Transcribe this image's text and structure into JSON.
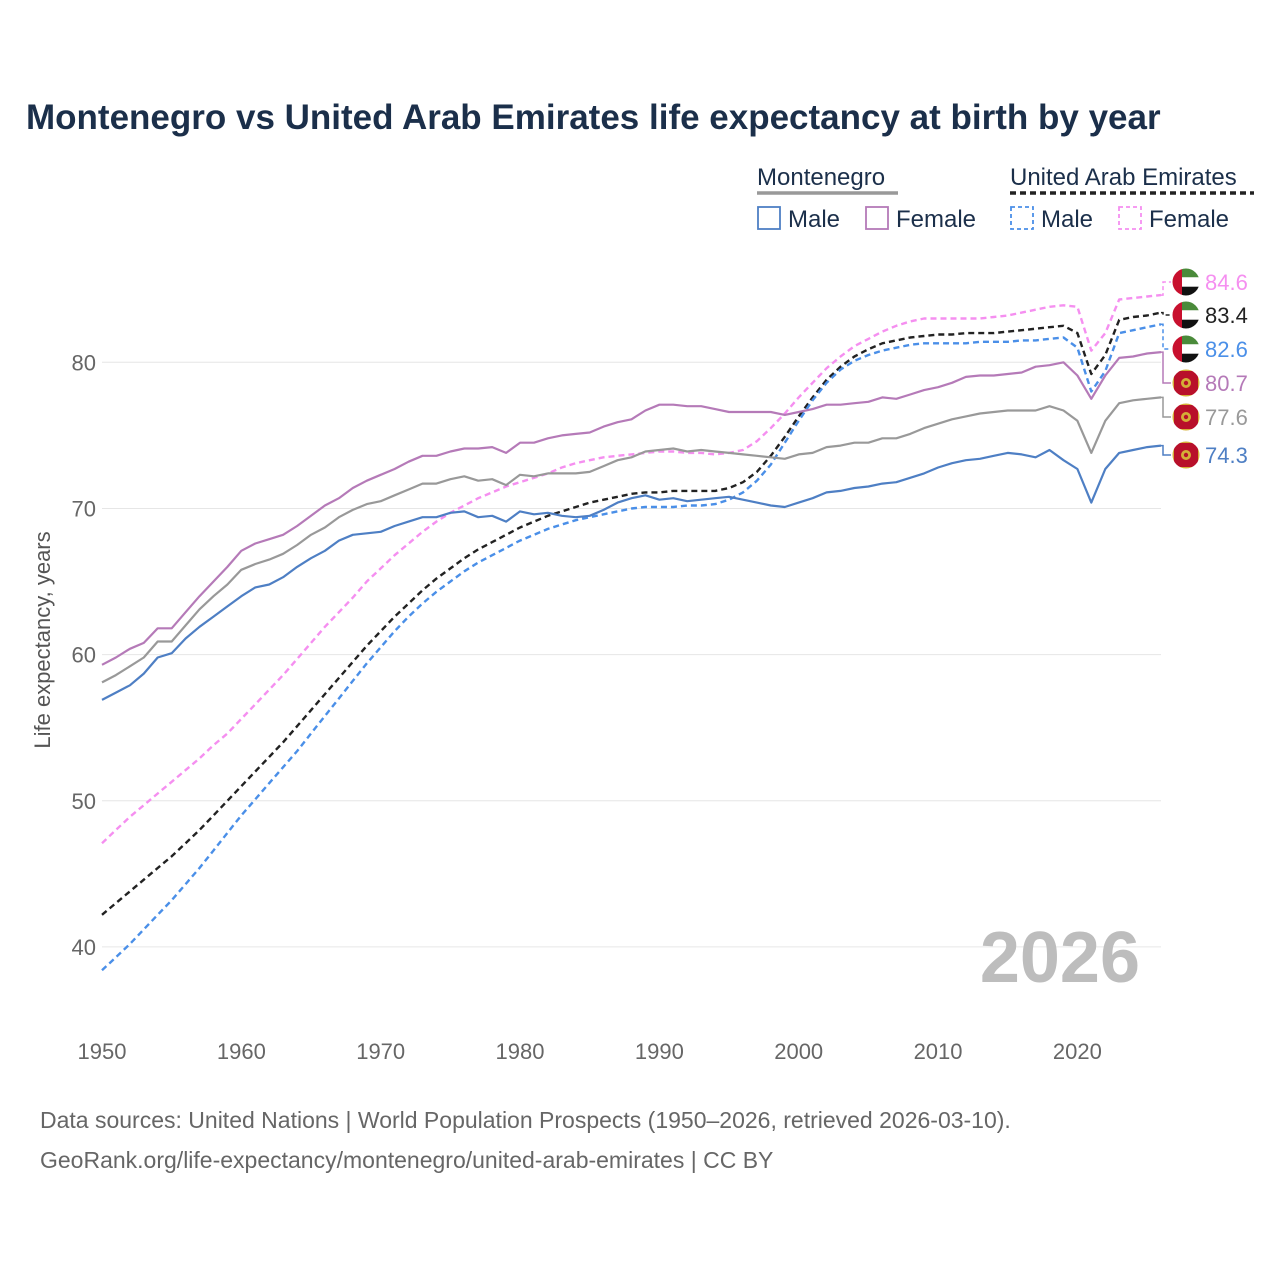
{
  "chart_data": {
    "type": "line",
    "title": "Montenegro vs United Arab Emirates life expectancy at birth by year",
    "ylabel": "Life expectancy, years",
    "xlabel": "",
    "xlim": [
      1950,
      2026
    ],
    "ylim": [
      35,
      87
    ],
    "x_ticks": [
      "1950",
      "1960",
      "1970",
      "1980",
      "1990",
      "2000",
      "2010",
      "2020"
    ],
    "y_ticks": [
      "40",
      "50",
      "60",
      "70",
      "80"
    ],
    "grid": true,
    "year_watermark": "2026",
    "legend": {
      "groups": [
        {
          "country": "Montenegro",
          "color": "#999999",
          "dash": false,
          "items": [
            {
              "label": "Male",
              "color": "#4e7fc4"
            },
            {
              "label": "Female",
              "color": "#b57ab8"
            }
          ]
        },
        {
          "country": "United Arab Emirates",
          "color": "#222222",
          "dash": true,
          "items": [
            {
              "label": "Male",
              "color": "#4a8fe8"
            },
            {
              "label": "Female",
              "color": "#f58ff0"
            }
          ]
        }
      ]
    },
    "x": [
      1950,
      1951,
      1952,
      1953,
      1954,
      1955,
      1956,
      1957,
      1958,
      1959,
      1960,
      1961,
      1962,
      1963,
      1964,
      1965,
      1966,
      1967,
      1968,
      1969,
      1970,
      1971,
      1972,
      1973,
      1974,
      1975,
      1976,
      1977,
      1978,
      1979,
      1980,
      1981,
      1982,
      1983,
      1984,
      1985,
      1986,
      1987,
      1988,
      1989,
      1990,
      1991,
      1992,
      1993,
      1994,
      1995,
      1996,
      1997,
      1998,
      1999,
      2000,
      2001,
      2002,
      2003,
      2004,
      2005,
      2006,
      2007,
      2008,
      2009,
      2010,
      2011,
      2012,
      2013,
      2014,
      2015,
      2016,
      2017,
      2018,
      2019,
      2020,
      2021,
      2022,
      2023,
      2024,
      2025,
      2026
    ],
    "series": [
      {
        "name": "United Arab Emirates Female",
        "country": "United Arab Emirates",
        "sex": "Female",
        "color": "#f58ff0",
        "dashed": true,
        "end_label": "84.6",
        "flag": "uae",
        "values": [
          47.1,
          48.0,
          48.9,
          49.7,
          50.5,
          51.3,
          52.1,
          52.9,
          53.8,
          54.6,
          55.6,
          56.6,
          57.6,
          58.6,
          59.7,
          60.8,
          61.9,
          62.9,
          63.9,
          65.0,
          65.9,
          66.8,
          67.6,
          68.4,
          69.1,
          69.7,
          70.2,
          70.7,
          71.1,
          71.5,
          71.8,
          72.1,
          72.4,
          72.8,
          73.1,
          73.3,
          73.5,
          73.6,
          73.7,
          73.8,
          73.9,
          73.9,
          73.8,
          73.8,
          73.7,
          73.8,
          74.0,
          74.6,
          75.5,
          76.5,
          77.6,
          78.6,
          79.6,
          80.4,
          81.1,
          81.6,
          82.1,
          82.5,
          82.8,
          83.0,
          83.0,
          83.0,
          83.0,
          83.0,
          83.1,
          83.2,
          83.4,
          83.6,
          83.8,
          83.9,
          83.8,
          80.8,
          82.0,
          84.3,
          84.4,
          84.5,
          84.6
        ]
      },
      {
        "name": "United Arab Emirates",
        "country": "United Arab Emirates",
        "sex": "Total",
        "color": "#222222",
        "dashed": true,
        "end_label": "83.4",
        "flag": "uae",
        "values": [
          42.2,
          43.0,
          43.8,
          44.6,
          45.4,
          46.2,
          47.1,
          48.0,
          49.0,
          50.0,
          51.0,
          52.0,
          53.0,
          54.0,
          55.1,
          56.2,
          57.3,
          58.4,
          59.5,
          60.6,
          61.6,
          62.6,
          63.5,
          64.4,
          65.2,
          65.9,
          66.6,
          67.2,
          67.7,
          68.2,
          68.7,
          69.1,
          69.5,
          69.8,
          70.1,
          70.4,
          70.6,
          70.8,
          71.0,
          71.1,
          71.1,
          71.2,
          71.2,
          71.2,
          71.2,
          71.4,
          71.8,
          72.5,
          73.6,
          74.9,
          76.3,
          77.6,
          78.8,
          79.7,
          80.4,
          80.9,
          81.3,
          81.5,
          81.7,
          81.8,
          81.9,
          81.9,
          82.0,
          82.0,
          82.0,
          82.1,
          82.2,
          82.3,
          82.4,
          82.5,
          82.0,
          79.2,
          80.5,
          82.9,
          83.1,
          83.2,
          83.4
        ]
      },
      {
        "name": "United Arab Emirates Male",
        "country": "United Arab Emirates",
        "sex": "Male",
        "color": "#4a8fe8",
        "dashed": true,
        "end_label": "82.6",
        "flag": "uae",
        "values": [
          38.4,
          39.3,
          40.2,
          41.2,
          42.2,
          43.2,
          44.3,
          45.4,
          46.6,
          47.8,
          49.0,
          50.1,
          51.2,
          52.3,
          53.4,
          54.6,
          55.8,
          57.0,
          58.2,
          59.4,
          60.5,
          61.6,
          62.6,
          63.5,
          64.3,
          65.0,
          65.7,
          66.3,
          66.8,
          67.3,
          67.8,
          68.2,
          68.6,
          68.9,
          69.2,
          69.4,
          69.6,
          69.8,
          70.0,
          70.1,
          70.1,
          70.1,
          70.2,
          70.2,
          70.3,
          70.6,
          71.1,
          71.9,
          73.0,
          74.5,
          76.0,
          77.4,
          78.6,
          79.5,
          80.1,
          80.5,
          80.8,
          81.0,
          81.2,
          81.3,
          81.3,
          81.3,
          81.3,
          81.4,
          81.4,
          81.4,
          81.5,
          81.5,
          81.6,
          81.7,
          81.0,
          78.0,
          79.4,
          82.0,
          82.2,
          82.4,
          82.6
        ]
      },
      {
        "name": "Montenegro Female",
        "country": "Montenegro",
        "sex": "Female",
        "color": "#b57ab8",
        "dashed": false,
        "end_label": "80.7",
        "flag": "mne",
        "values": [
          59.3,
          59.8,
          60.4,
          60.8,
          61.8,
          61.8,
          62.9,
          64.0,
          65.0,
          66.0,
          67.1,
          67.6,
          67.9,
          68.2,
          68.8,
          69.5,
          70.2,
          70.7,
          71.4,
          71.9,
          72.3,
          72.7,
          73.2,
          73.6,
          73.6,
          73.9,
          74.1,
          74.1,
          74.2,
          73.8,
          74.5,
          74.5,
          74.8,
          75.0,
          75.1,
          75.2,
          75.6,
          75.9,
          76.1,
          76.7,
          77.1,
          77.1,
          77.0,
          77.0,
          76.8,
          76.6,
          76.6,
          76.6,
          76.6,
          76.4,
          76.6,
          76.8,
          77.1,
          77.1,
          77.2,
          77.3,
          77.6,
          77.5,
          77.8,
          78.1,
          78.3,
          78.6,
          79.0,
          79.1,
          79.1,
          79.2,
          79.3,
          79.7,
          79.8,
          80.0,
          79.1,
          77.5,
          79.1,
          80.3,
          80.4,
          80.6,
          80.7
        ]
      },
      {
        "name": "Montenegro",
        "country": "Montenegro",
        "sex": "Total",
        "color": "#999999",
        "dashed": false,
        "end_label": "77.6",
        "flag": "mne",
        "values": [
          58.1,
          58.6,
          59.2,
          59.8,
          60.9,
          60.9,
          62.0,
          63.1,
          64.0,
          64.8,
          65.8,
          66.2,
          66.5,
          66.9,
          67.5,
          68.2,
          68.7,
          69.4,
          69.9,
          70.3,
          70.5,
          70.9,
          71.3,
          71.7,
          71.7,
          72.0,
          72.2,
          71.9,
          72.0,
          71.6,
          72.3,
          72.2,
          72.4,
          72.4,
          72.4,
          72.5,
          72.9,
          73.3,
          73.5,
          73.9,
          74.0,
          74.1,
          73.9,
          74.0,
          73.9,
          73.8,
          73.7,
          73.6,
          73.5,
          73.4,
          73.7,
          73.8,
          74.2,
          74.3,
          74.5,
          74.5,
          74.8,
          74.8,
          75.1,
          75.5,
          75.8,
          76.1,
          76.3,
          76.5,
          76.6,
          76.7,
          76.7,
          76.7,
          77.0,
          76.7,
          76.0,
          73.8,
          76.0,
          77.2,
          77.4,
          77.5,
          77.6
        ]
      },
      {
        "name": "Montenegro Male",
        "country": "Montenegro",
        "sex": "Male",
        "color": "#4e7fc4",
        "dashed": false,
        "end_label": "74.3",
        "flag": "mne",
        "values": [
          56.9,
          57.4,
          57.9,
          58.7,
          59.8,
          60.1,
          61.1,
          61.9,
          62.6,
          63.3,
          64.0,
          64.6,
          64.8,
          65.3,
          66.0,
          66.6,
          67.1,
          67.8,
          68.2,
          68.3,
          68.4,
          68.8,
          69.1,
          69.4,
          69.4,
          69.7,
          69.8,
          69.4,
          69.5,
          69.1,
          69.8,
          69.6,
          69.7,
          69.5,
          69.4,
          69.5,
          69.9,
          70.4,
          70.7,
          70.9,
          70.6,
          70.7,
          70.5,
          70.6,
          70.7,
          70.8,
          70.6,
          70.4,
          70.2,
          70.1,
          70.4,
          70.7,
          71.1,
          71.2,
          71.4,
          71.5,
          71.7,
          71.8,
          72.1,
          72.4,
          72.8,
          73.1,
          73.3,
          73.4,
          73.6,
          73.8,
          73.7,
          73.5,
          74.0,
          73.3,
          72.7,
          70.4,
          72.7,
          73.8,
          74.0,
          74.2,
          74.3
        ]
      }
    ]
  },
  "sources": {
    "line1": "Data sources: United Nations | World Population Prospects (1950–2026, retrieved 2026-03-10).",
    "line2": "GeoRank.org/life-expectancy/montenegro/united-arab-emirates | CC BY"
  }
}
